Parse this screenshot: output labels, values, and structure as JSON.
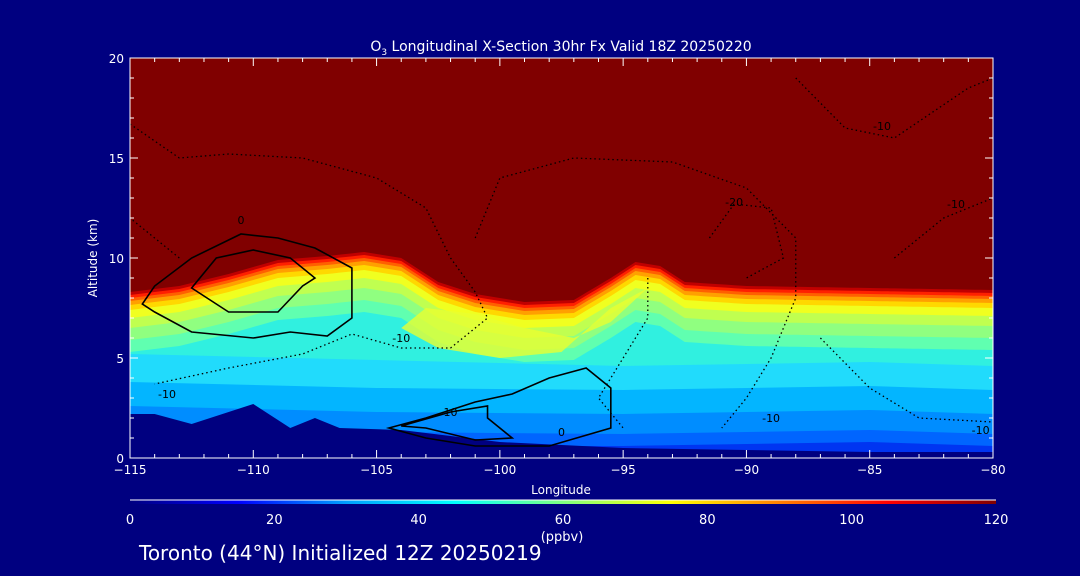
{
  "chart_data": {
    "type": "heatmap",
    "title_prefix": "O",
    "title_sub": "3",
    "title_rest": " Longitudinal X-Section 30hr  Fx Valid 18Z 20250220",
    "xlabel": "Longitude",
    "ylabel": "Altitude (km)",
    "xlim": [
      -115,
      -80
    ],
    "ylim": [
      0,
      20
    ],
    "xticks": [
      -115,
      -110,
      -105,
      -100,
      -95,
      -90,
      -85,
      -80
    ],
    "xtick_labels": [
      "−115",
      "−110",
      "−105",
      "−100",
      "−95",
      "−90",
      "−85",
      "−80"
    ],
    "yticks": [
      0,
      5,
      10,
      15,
      20
    ],
    "ytick_labels": [
      "0",
      "5",
      "10",
      "15",
      "20"
    ],
    "colorbar": {
      "range": [
        0,
        120
      ],
      "ticks": [
        0,
        20,
        40,
        60,
        80,
        100,
        120
      ],
      "tick_labels": [
        "0",
        "20",
        "40",
        "60",
        "80",
        "100",
        "120"
      ],
      "unit": "(ppbv)",
      "colors": [
        "#000080",
        "#0000ff",
        "#00a0ff",
        "#00ffff",
        "#80ff80",
        "#ffff00",
        "#ff8000",
        "#ff0000",
        "#800000"
      ]
    },
    "ozone_top_boundary": {
      "lon": [
        -115,
        -113,
        -111,
        -109,
        -107,
        -105.5,
        -104,
        -102.5,
        -101,
        -99,
        -97,
        -95.5,
        -94.5,
        -93.5,
        -92.5,
        -90,
        -85,
        -80
      ],
      "alt_km": [
        8.3,
        8.6,
        9.2,
        9.9,
        10.1,
        10.3,
        10.0,
        8.8,
        8.2,
        7.8,
        7.9,
        9.0,
        9.8,
        9.6,
        8.8,
        8.6,
        8.5,
        8.4
      ]
    },
    "contour_labels": [
      {
        "text": "0",
        "lon": -110.5,
        "alt": 11.7
      },
      {
        "text": "10",
        "lon": -102,
        "alt": 2.1
      },
      {
        "text": "0",
        "lon": -97.5,
        "alt": 1.1
      },
      {
        "text": "-10",
        "lon": -113.5,
        "alt": 3
      },
      {
        "text": "-10",
        "lon": -104,
        "alt": 5.8
      },
      {
        "text": "-20",
        "lon": -90.5,
        "alt": 12.6
      },
      {
        "text": "-10",
        "lon": -84.5,
        "alt": 16.4
      },
      {
        "text": "-10",
        "lon": -81.5,
        "alt": 12.5
      },
      {
        "text": "-10",
        "lon": -89,
        "alt": 1.8
      },
      {
        "text": "-10",
        "lon": -80.5,
        "alt": 1.2
      }
    ],
    "footer": "Toronto (44°N) Initialized 12Z 20250219"
  }
}
